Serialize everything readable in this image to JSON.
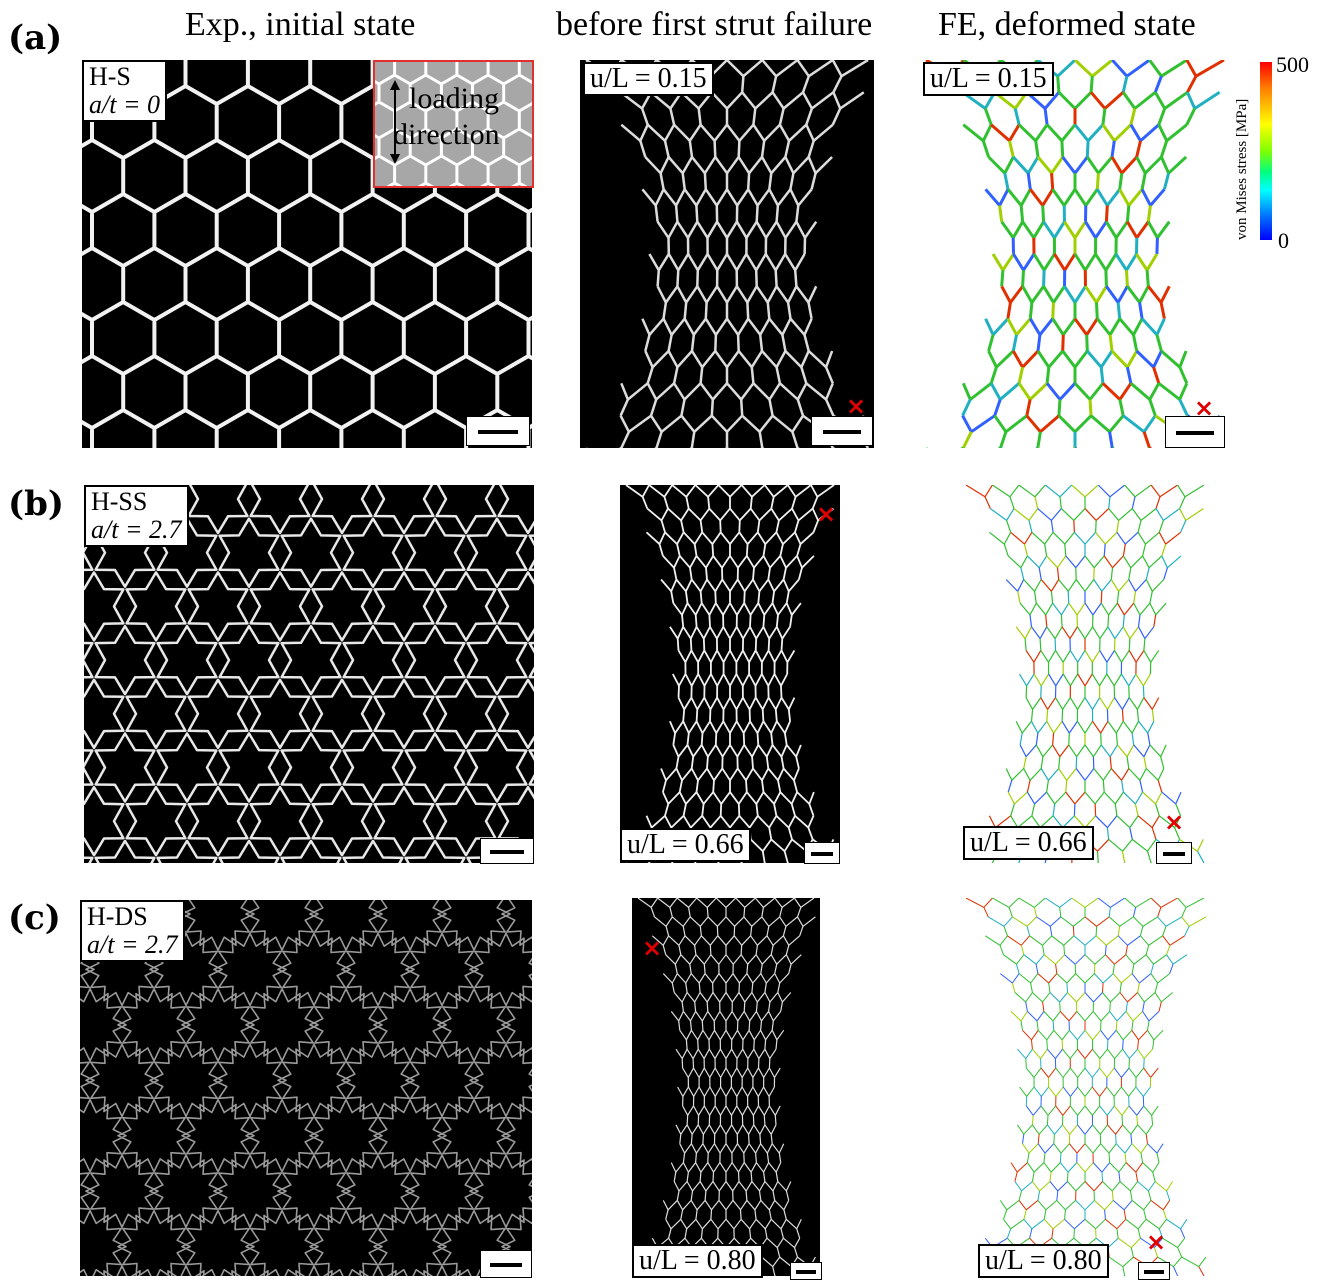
{
  "columns": {
    "col1": "Exp., initial state",
    "col2": "before first strut failure",
    "col3": "FE, deformed state"
  },
  "rows": [
    {
      "label": "(a)",
      "name": "H-S",
      "ratio": "a/t = 0",
      "u_exp": "u/L = 0.15",
      "u_fe": "u/L = 0.15"
    },
    {
      "label": "(b)",
      "name": "H-SS",
      "ratio": "a/t = 2.7",
      "u_exp": "u/L = 0.66",
      "u_fe": "u/L = 0.66"
    },
    {
      "label": "(c)",
      "name": "H-DS",
      "ratio": "a/t = 2.7",
      "u_exp": "u/L = 0.80",
      "u_fe": "u/L = 0.80"
    }
  ],
  "inset": {
    "line1": "loading",
    "line2": "direction"
  },
  "colorbar": {
    "title": "von Mises stress [MPa]",
    "max": "500",
    "min": "0"
  },
  "failure_marker": "×",
  "colors": {
    "failure": "#e00000",
    "inset_border": "#e03030",
    "inset_fill": "#a7a7a7",
    "fe_stress_low": "#3050ff",
    "fe_stress_mid": "#30c030",
    "fe_stress_high": "#e03000"
  }
}
